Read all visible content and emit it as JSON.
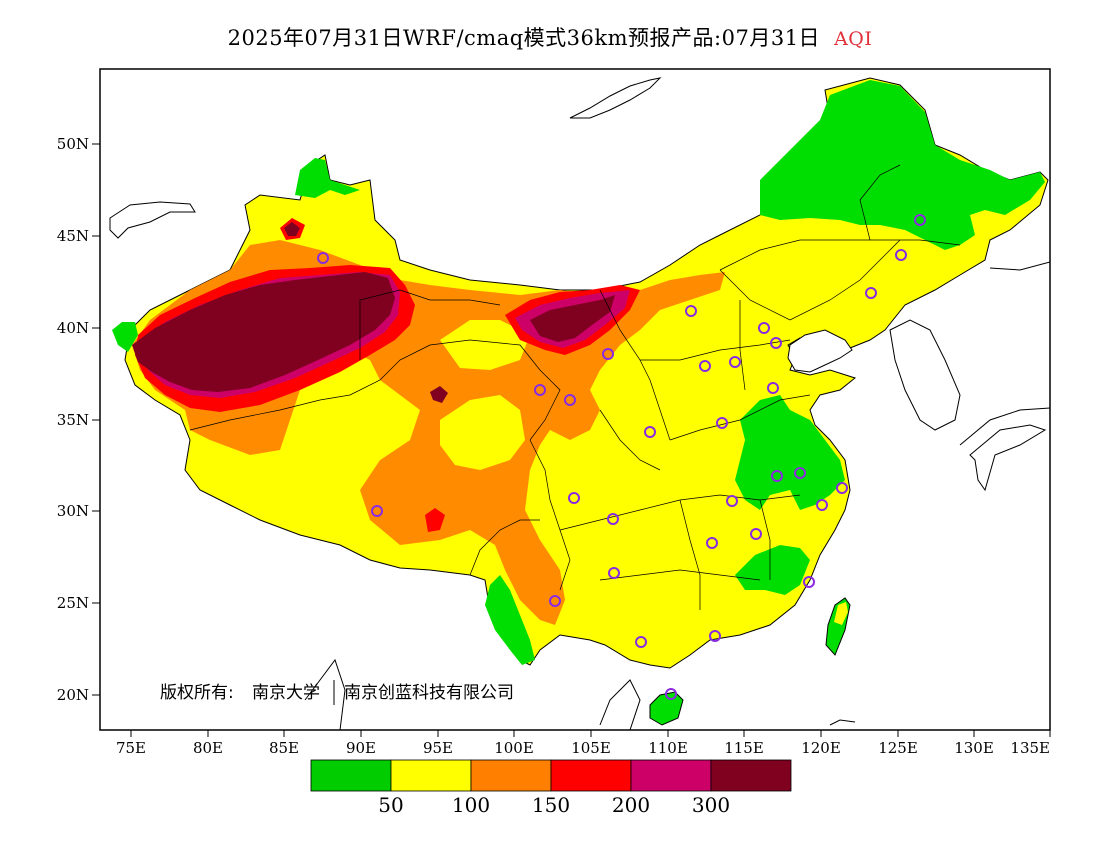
{
  "title": {
    "main": "2025年07月31日WRF/cmaq模式36km预报产品:07月31日",
    "variable": "AQI"
  },
  "axes": {
    "lat_ticks": [
      "50N",
      "45N",
      "40N",
      "35N",
      "30N",
      "25N",
      "20N"
    ],
    "lon_ticks": [
      "75E",
      "80E",
      "85E",
      "90E",
      "95E",
      "100E",
      "105E",
      "110E",
      "115E",
      "120E",
      "125E",
      "130E",
      "135E"
    ]
  },
  "copyright": {
    "owner_label": "版权所有:",
    "org1": "南京大学",
    "org2": "南京创蓝科技有限公司"
  },
  "legend": {
    "colors": [
      "#00cc00",
      "#ffff00",
      "#ff8000",
      "#ff0000",
      "#cc0066",
      "#800020"
    ],
    "labels": [
      "50",
      "100",
      "150",
      "200",
      "300"
    ]
  },
  "map_colors": {
    "ocean": "#ffffff",
    "good": "#00dd00",
    "moderate": "#ffff00",
    "usg": "#ff8c00",
    "unhealthy": "#ff0000",
    "very_unhealthy": "#cc0066",
    "hazardous": "#800020",
    "station_marker": "#8a2be2"
  }
}
